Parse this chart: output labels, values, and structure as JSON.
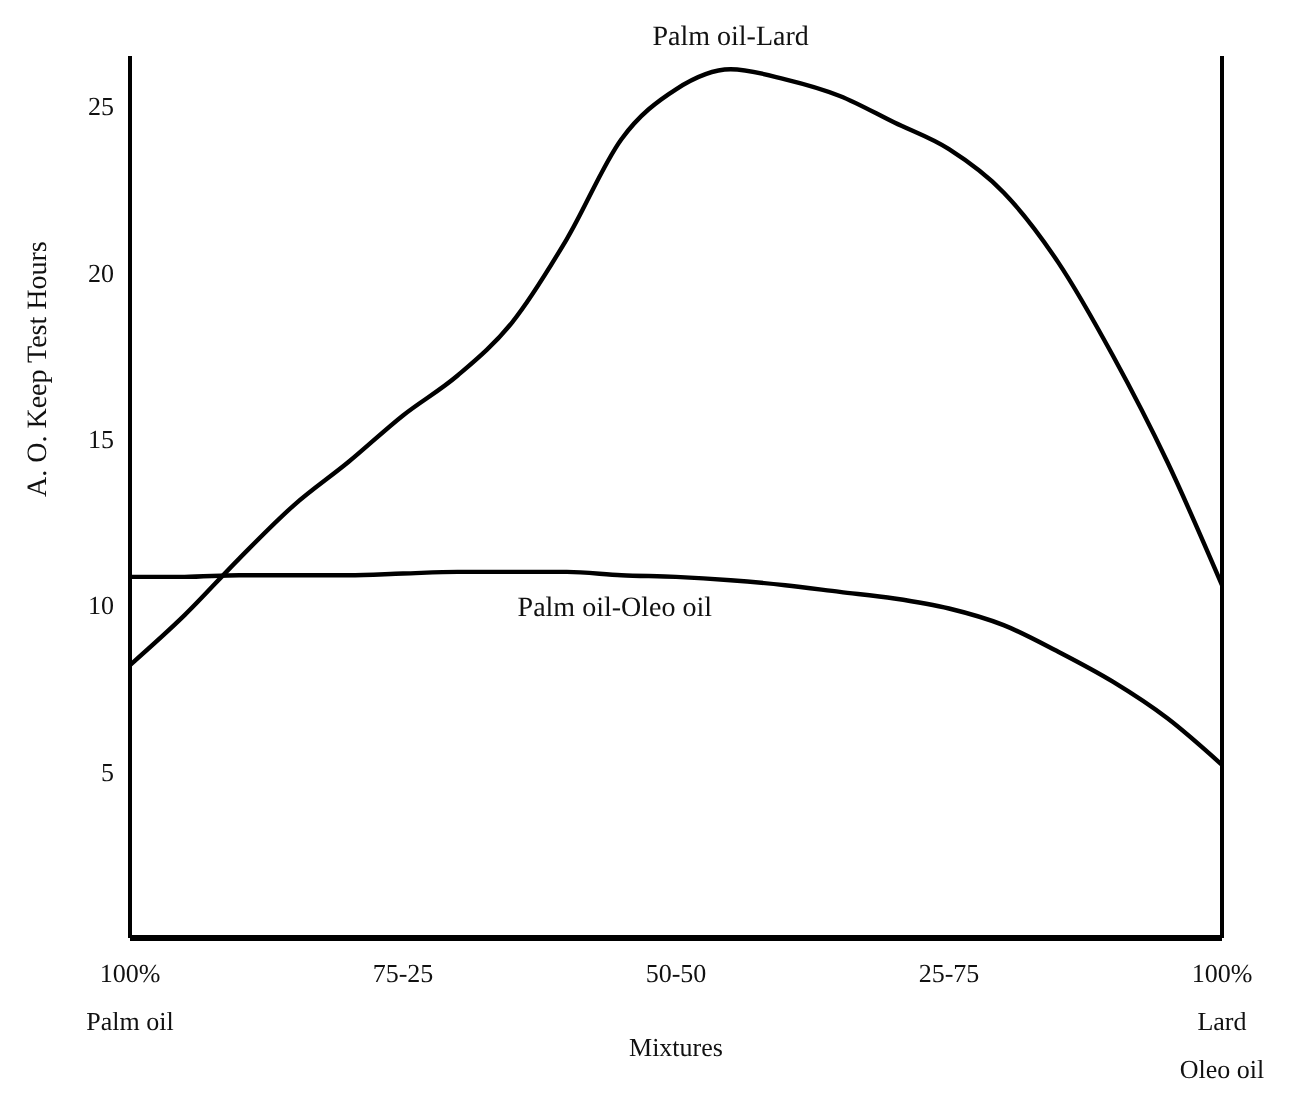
{
  "chart_data": {
    "type": "line",
    "xlabel": "Mixtures",
    "ylabel": "A. O. Keep Test Hours",
    "categories": [
      "100%\nPalm oil",
      null,
      null,
      null,
      null,
      "75-25",
      null,
      null,
      null,
      null,
      "50-50",
      null,
      null,
      null,
      null,
      "25-75",
      null,
      null,
      null,
      null,
      "100%\nLard\nOleo oil"
    ],
    "ylim": [
      0,
      26.5
    ],
    "yticks": [
      5,
      10,
      15,
      20,
      25
    ],
    "marker": "none",
    "line_style": "solid",
    "series": [
      {
        "name": "Palm oil-Lard",
        "color": "#000000",
        "values": [
          8.2,
          9.7,
          11.4,
          13,
          14.3,
          15.7,
          16.9,
          18.5,
          21,
          24,
          25.5,
          26.1,
          25.8,
          25.3,
          24.5,
          23.7,
          22.4,
          20.3,
          17.5,
          14.3,
          10.6
        ]
      },
      {
        "name": "Palm oil-Oleo oil",
        "color": "#000000",
        "values": [
          10.85,
          10.85,
          10.9,
          10.9,
          10.9,
          10.95,
          11,
          11,
          11,
          10.9,
          10.85,
          10.75,
          10.6,
          10.4,
          10.2,
          9.9,
          9.4,
          8.6,
          7.7,
          6.6,
          5.2
        ]
      }
    ]
  }
}
